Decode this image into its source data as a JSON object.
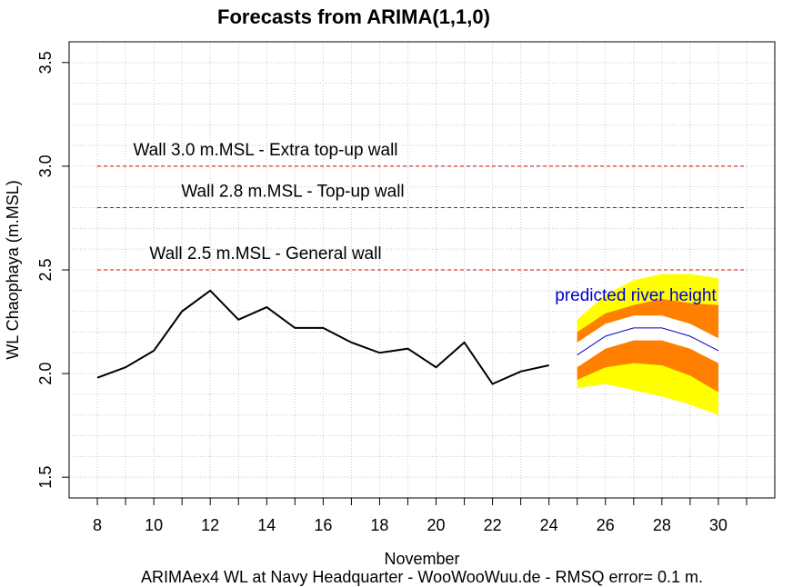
{
  "chart_data": {
    "type": "line",
    "title": "Forecasts from ARIMA(1,1,0)",
    "xlabel": "November",
    "ylabel": "WL Chaophaya (m.MSL)",
    "footer": "ARIMAex4 WL at Navy Headquarter - WooWooWuu.de - RMSQ error= 0.1  m.",
    "xlim": [
      7,
      32
    ],
    "ylim": [
      1.4,
      3.6
    ],
    "x_ticks": [
      "8",
      "10",
      "12",
      "14",
      "16",
      "18",
      "20",
      "22",
      "24",
      "26",
      "28",
      "30"
    ],
    "y_ticks": [
      "1.5",
      "2.0",
      "2.5",
      "3.0",
      "3.5"
    ],
    "grid": true,
    "observed": {
      "x": [
        8,
        9,
        10,
        11,
        12,
        13,
        14,
        15,
        16,
        17,
        18,
        19,
        20,
        21,
        22,
        23,
        24
      ],
      "y": [
        1.98,
        2.03,
        2.11,
        2.3,
        2.4,
        2.26,
        2.32,
        2.22,
        2.22,
        2.15,
        2.1,
        2.12,
        2.03,
        2.15,
        1.95,
        2.01,
        2.04
      ]
    },
    "forecast": {
      "x": [
        25,
        26,
        27,
        28,
        29,
        30
      ],
      "mean": [
        2.09,
        2.18,
        2.22,
        2.22,
        2.18,
        2.11
      ],
      "lo80": [
        1.97,
        2.03,
        2.05,
        2.04,
        1.99,
        1.91
      ],
      "hi80": [
        2.2,
        2.29,
        2.33,
        2.36,
        2.34,
        2.33
      ],
      "lo95": [
        1.93,
        1.95,
        1.92,
        1.89,
        1.85,
        1.8
      ],
      "hi95": [
        2.26,
        2.38,
        2.45,
        2.48,
        2.48,
        2.46
      ],
      "band80_color": "#ff7f00",
      "band95_color": "#ffff00",
      "mean_color": "#0000cc",
      "label": "predicted river height"
    },
    "walls": [
      {
        "y": 3.0,
        "label": "Wall 3.0 m.MSL - Extra top-up wall"
      },
      {
        "y": 2.8,
        "label": "Wall 2.8 m.MSL - Top-up wall"
      },
      {
        "y": 2.5,
        "label": "Wall 2.5 m.MSL - General wall"
      }
    ],
    "wall_color": "#dd0000",
    "observed_color": "#000000"
  }
}
